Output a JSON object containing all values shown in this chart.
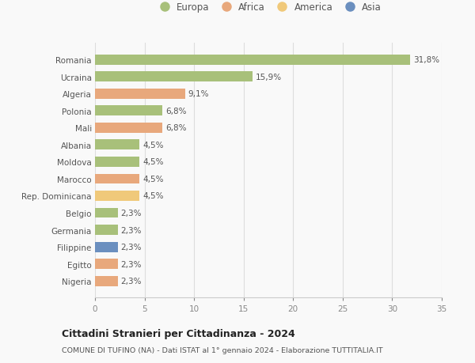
{
  "categories": [
    "Nigeria",
    "Egitto",
    "Filippine",
    "Germania",
    "Belgio",
    "Rep. Dominicana",
    "Marocco",
    "Moldova",
    "Albania",
    "Mali",
    "Polonia",
    "Algeria",
    "Ucraina",
    "Romania"
  ],
  "values": [
    2.3,
    2.3,
    2.3,
    2.3,
    2.3,
    4.5,
    4.5,
    4.5,
    4.5,
    6.8,
    6.8,
    9.1,
    15.9,
    31.8
  ],
  "labels": [
    "2,3%",
    "2,3%",
    "2,3%",
    "2,3%",
    "2,3%",
    "4,5%",
    "4,5%",
    "4,5%",
    "4,5%",
    "6,8%",
    "6,8%",
    "9,1%",
    "15,9%",
    "31,8%"
  ],
  "colors": [
    "#E8A87C",
    "#E8A87C",
    "#6B8FBF",
    "#A8C07A",
    "#A8C07A",
    "#F0C97A",
    "#E8A87C",
    "#A8C07A",
    "#A8C07A",
    "#E8A87C",
    "#A8C07A",
    "#E8A87C",
    "#A8C07A",
    "#A8C07A"
  ],
  "legend_labels": [
    "Europa",
    "Africa",
    "America",
    "Asia"
  ],
  "legend_colors": [
    "#A8C07A",
    "#E8A87C",
    "#F0C97A",
    "#6B8FBF"
  ],
  "title": "Cittadini Stranieri per Cittadinanza - 2024",
  "subtitle": "COMUNE DI TUFINO (NA) - Dati ISTAT al 1° gennaio 2024 - Elaborazione TUTTITALIA.IT",
  "xlim": [
    0,
    35
  ],
  "xticks": [
    0,
    5,
    10,
    15,
    20,
    25,
    30,
    35
  ],
  "bg_color": "#f9f9f9",
  "bar_height": 0.6
}
